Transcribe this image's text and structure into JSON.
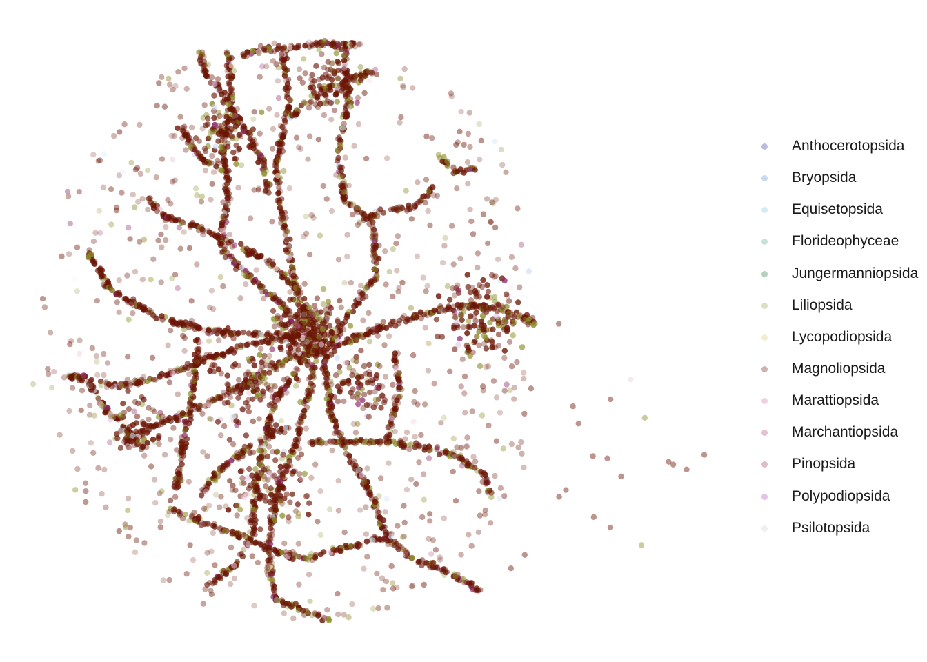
{
  "chart_data": {
    "type": "scatter",
    "title": "",
    "xlabel": "",
    "ylabel": "",
    "grid": false,
    "axes_visible": false,
    "legend_position": "right",
    "xlim": [
      0,
      1
    ],
    "ylim": [
      0,
      1
    ],
    "series": [
      {
        "name": "Anthocerotopsida",
        "color": "#b9bde0",
        "density": "none-visible"
      },
      {
        "name": "Bryopsida",
        "color": "#c9d9f2",
        "density": "rare"
      },
      {
        "name": "Equisetopsida",
        "color": "#d3eaf7",
        "density": "rare"
      },
      {
        "name": "Florideophyceae",
        "color": "#c6e2da",
        "density": "none-visible"
      },
      {
        "name": "Jungermanniopsida",
        "color": "#b3d1bd",
        "density": "none-visible"
      },
      {
        "name": "Liliopsida",
        "color": "#8c8c28",
        "density": "common"
      },
      {
        "name": "Lycopodiopsida",
        "color": "#f4ecd0",
        "density": "rare"
      },
      {
        "name": "Magnoliopsida",
        "color": "#6b1505",
        "density": "dominant"
      },
      {
        "name": "Marattiopsida",
        "color": "#f0cfe0",
        "density": "rare"
      },
      {
        "name": "Marchantiopsida",
        "color": "#e6bfd2",
        "density": "rare"
      },
      {
        "name": "Pinopsida",
        "color": "#8e2a6a",
        "density": "uncommon"
      },
      {
        "name": "Polypodiopsida",
        "color": "#e2c4e6",
        "density": "rare"
      },
      {
        "name": "Psilotopsida",
        "color": "#f0f0ec",
        "density": "rare"
      }
    ]
  }
}
